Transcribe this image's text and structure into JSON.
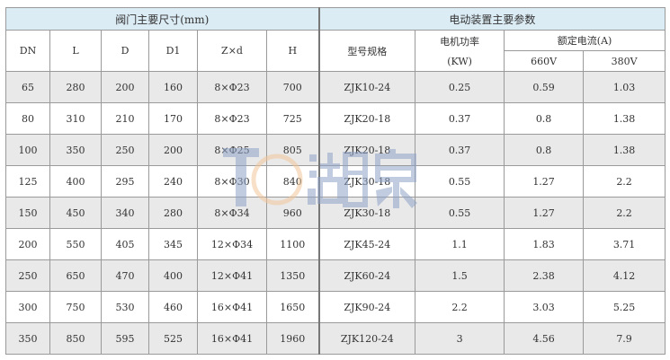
{
  "header": {
    "valve_group": "阀门主要尺寸(mm)",
    "actuator_group": "电动装置主要参数",
    "cols": [
      "DN",
      "L",
      "D",
      "D1",
      "Z×d",
      "H"
    ],
    "model": "型号规格",
    "power": "电机功率",
    "power_unit": "(KW)",
    "current": "额定电流(A)",
    "v660": "660V",
    "v380": "380V"
  },
  "rows": [
    [
      "65",
      "280",
      "200",
      "160",
      "8×Φ23",
      "700",
      "ZJK10-24",
      "0.25",
      "0.59",
      "1.03"
    ],
    [
      "80",
      "310",
      "210",
      "170",
      "8×Φ23",
      "725",
      "ZJK20-18",
      "0.37",
      "0.8",
      "1.38"
    ],
    [
      "100",
      "350",
      "250",
      "200",
      "8×Φ25",
      "805",
      "ZJK20-18",
      "0.37",
      "0.8",
      "1.38"
    ],
    [
      "125",
      "400",
      "295",
      "240",
      "8×Φ30",
      "840",
      "ZJK30-18",
      "0.55",
      "1.27",
      "2.2"
    ],
    [
      "150",
      "450",
      "340",
      "280",
      "8×Φ34",
      "960",
      "ZJK30-18",
      "0.55",
      "1.27",
      "2.2"
    ],
    [
      "200",
      "550",
      "405",
      "345",
      "12×Φ34",
      "1100",
      "ZJK45-24",
      "1.1",
      "1.83",
      "3.71"
    ],
    [
      "250",
      "650",
      "470",
      "400",
      "12×Φ41",
      "1350",
      "ZJK60-24",
      "1.5",
      "2.38",
      "4.12"
    ],
    [
      "300",
      "750",
      "530",
      "460",
      "16×Φ41",
      "1650",
      "ZJK90-24",
      "2.2",
      "3.03",
      "5.25"
    ],
    [
      "350",
      "850",
      "595",
      "525",
      "16×Φ41",
      "1960",
      "ZJK120-24",
      "3",
      "4.56",
      "7.9"
    ]
  ],
  "watermark": {
    "text": "湖泉",
    "colors": {
      "blue": "#8fa3c8",
      "orange": "#f2c79a"
    }
  }
}
